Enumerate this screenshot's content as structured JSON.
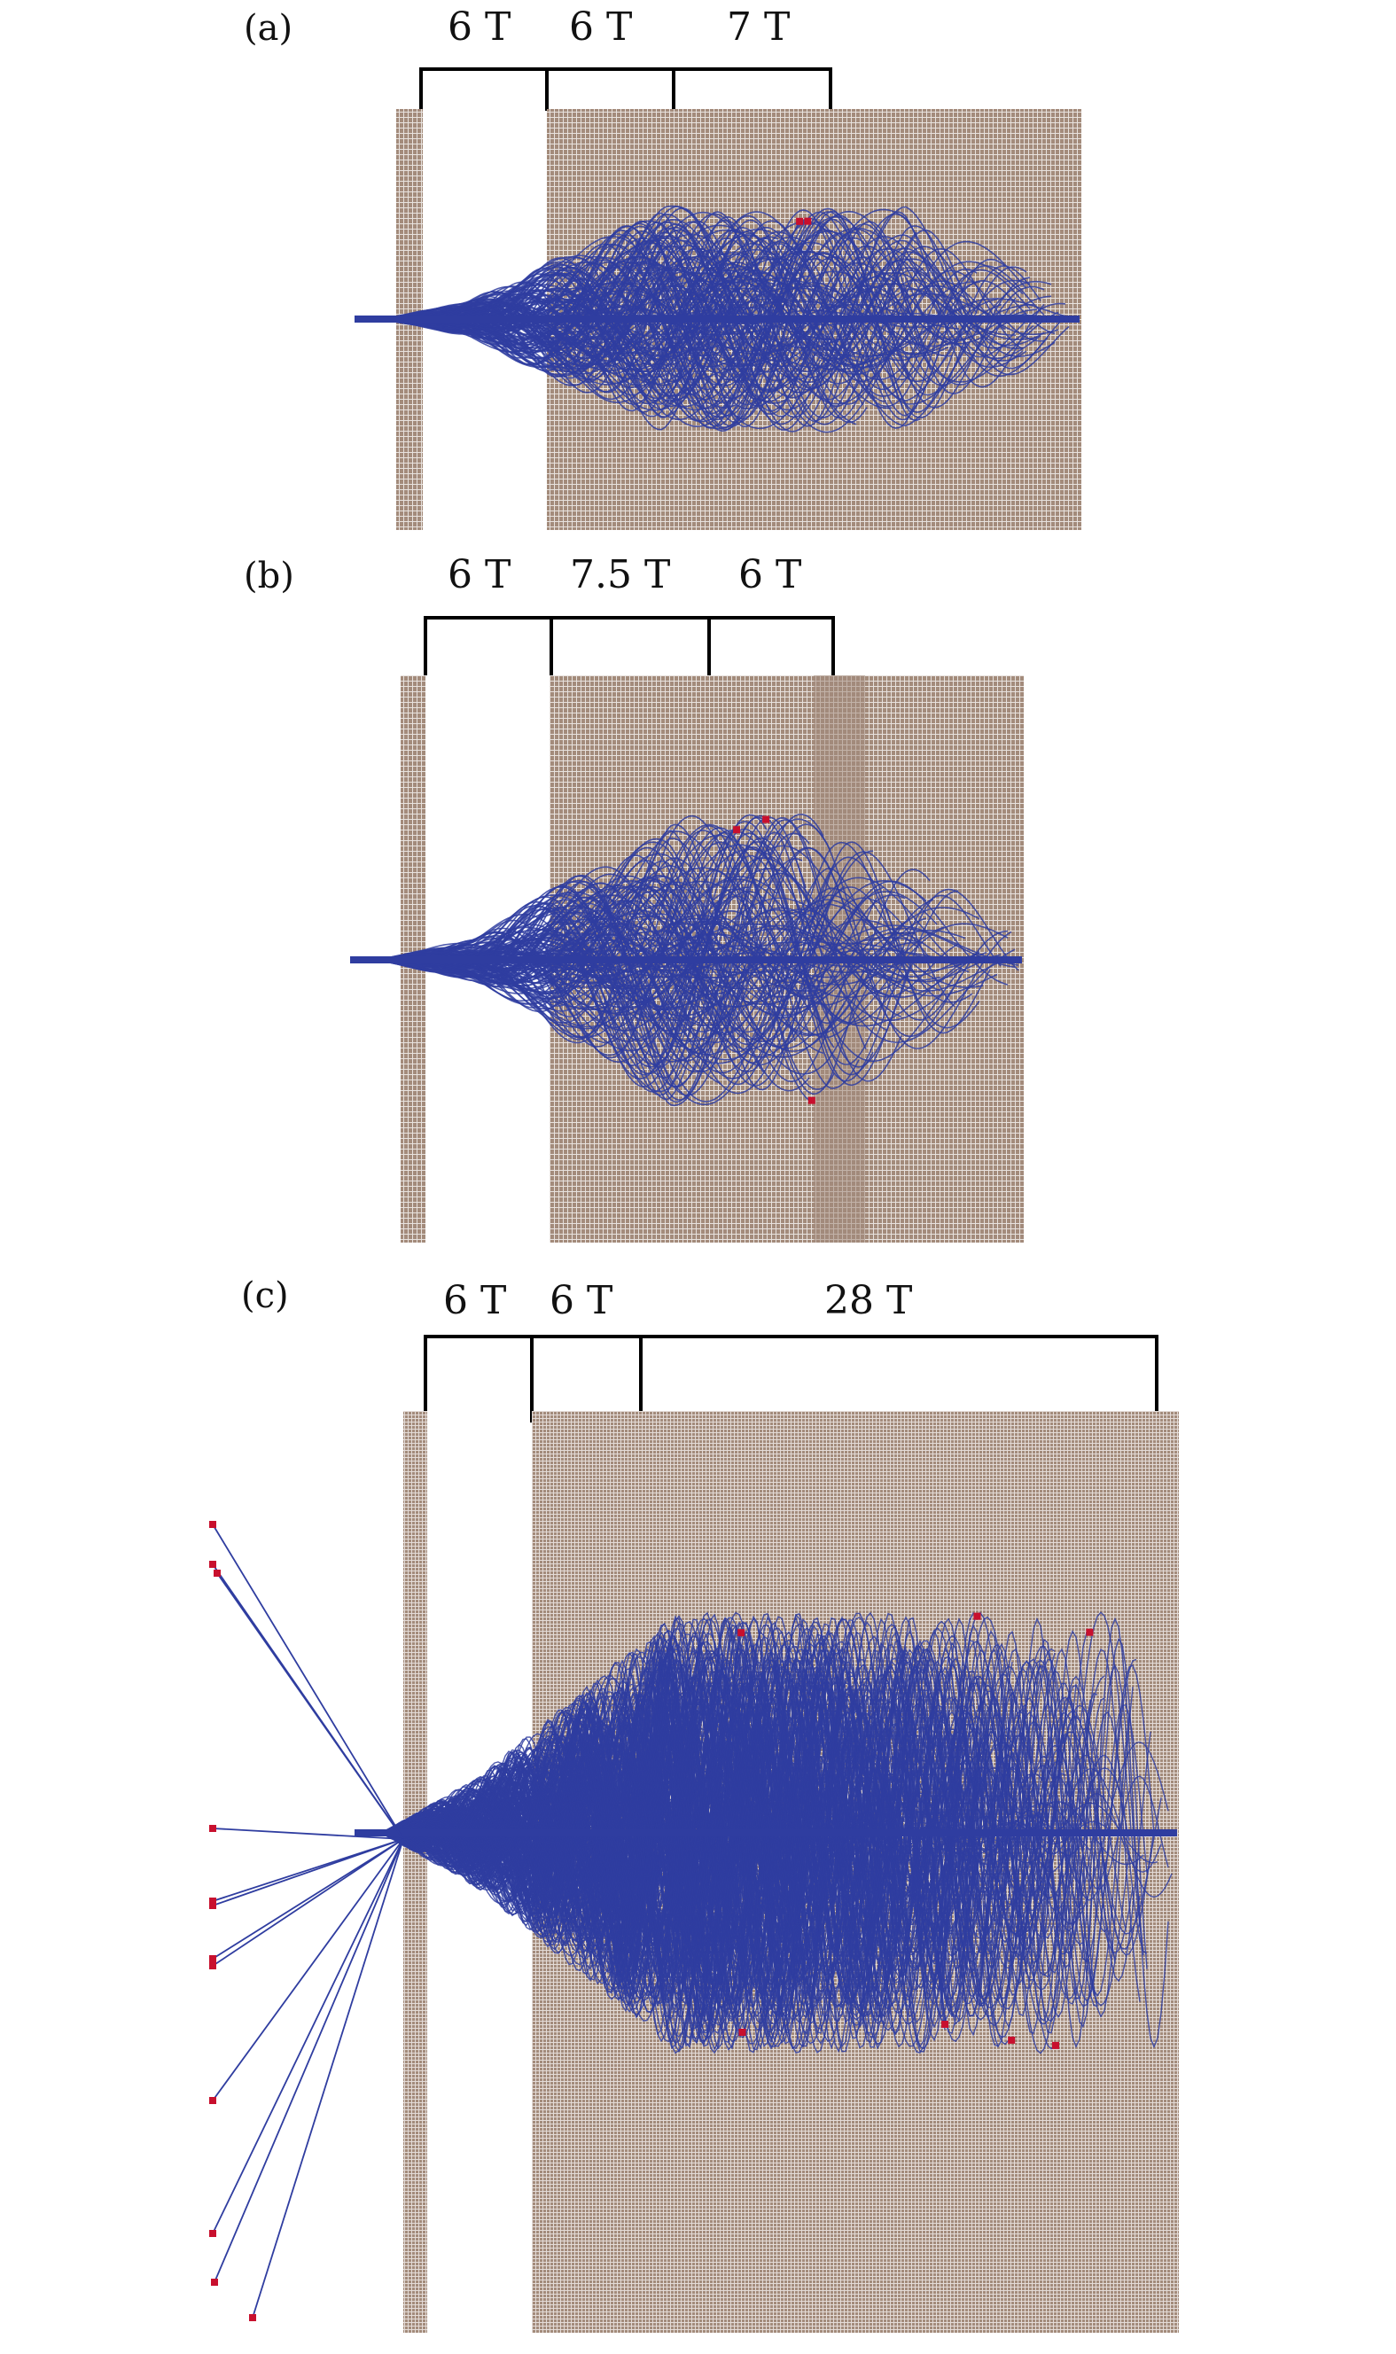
{
  "colors": {
    "mesh": "#a38b7b",
    "grid_line": "#ffffff",
    "trajectory": "#2f3da0",
    "endpoint": "#c8102e",
    "bracket": "#000000"
  },
  "panels": [
    {
      "id": "a",
      "label": "(a)",
      "segments": [
        {
          "label": "6 T"
        },
        {
          "label": "6 T"
        },
        {
          "label": "7 T"
        }
      ]
    },
    {
      "id": "b",
      "label": "(b)",
      "segments": [
        {
          "label": "6 T"
        },
        {
          "label": "7.5 T"
        },
        {
          "label": "6 T"
        }
      ]
    },
    {
      "id": "c",
      "label": "(c)",
      "segments": [
        {
          "label": "6 T"
        },
        {
          "label": "6 T"
        },
        {
          "label": "28 T"
        }
      ]
    }
  ]
}
